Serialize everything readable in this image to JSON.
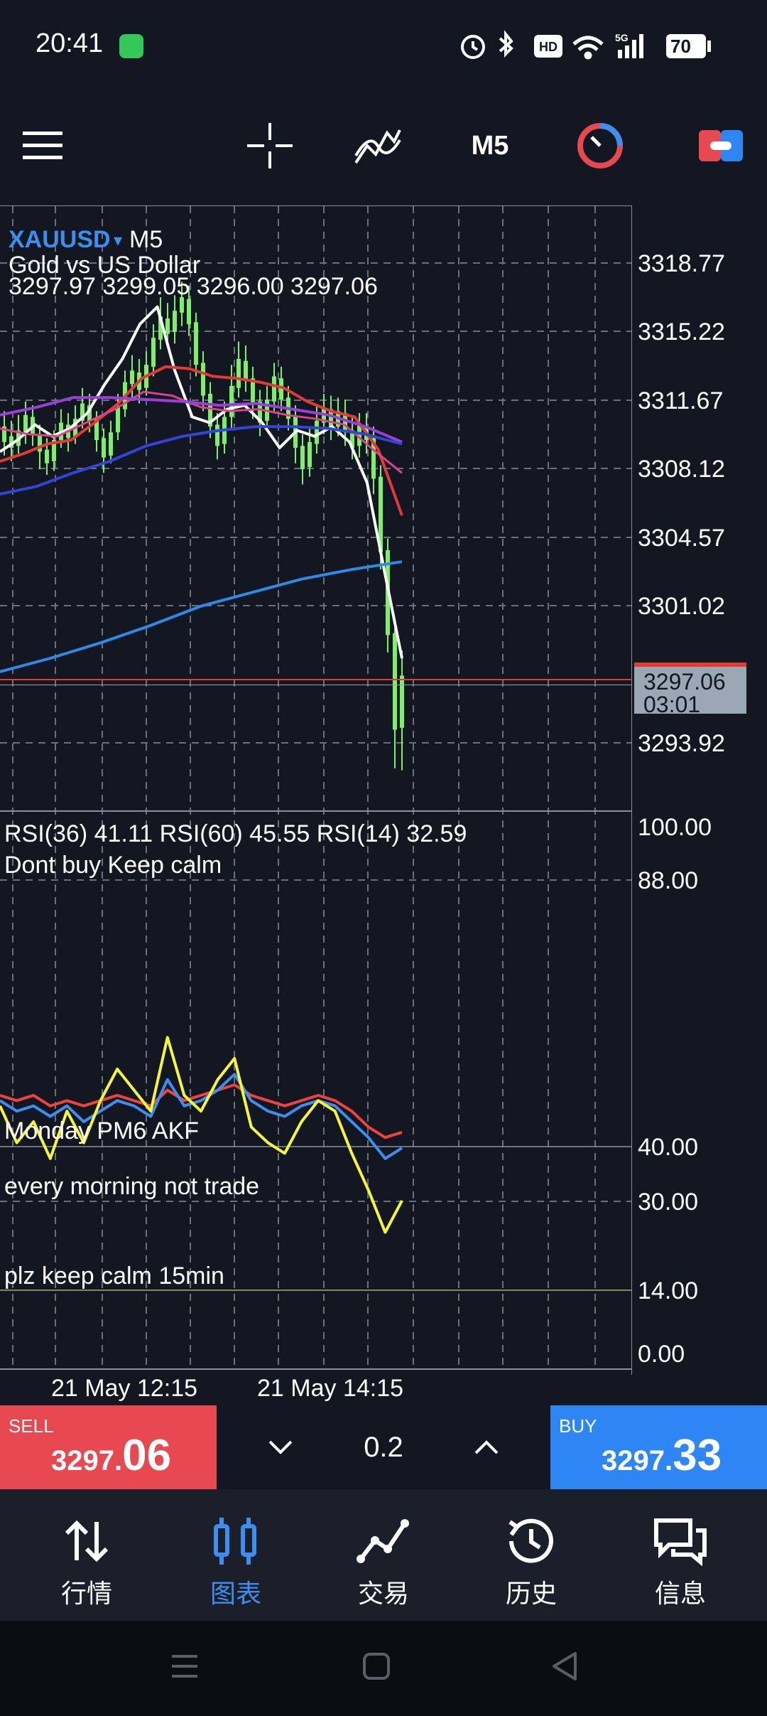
{
  "status": {
    "time": "20:41",
    "battery": "70",
    "hd": "HD",
    "network": "5G"
  },
  "toolbar": {
    "timeframe": "M5",
    "menu_icon": "menu-icon",
    "crosshair_icon": "crosshair-icon",
    "indicators_icon": "indicators-icon",
    "timer_icon": "timer-icon",
    "trade_toggle_icon": "trade-toggle-icon"
  },
  "chart": {
    "symbol": "XAUUSD",
    "symbol_arrow": "▾",
    "timeframe": "M5",
    "description": "Gold vs US Dollar",
    "ohlc": "3297.97 3299.05 3296.00 3297.06",
    "price_levels": [
      "3318.77",
      "3315.22",
      "3311.67",
      "3308.12",
      "3304.57",
      "3301.02",
      "3293.92"
    ],
    "current_price": "3297.06",
    "countdown": "03:01",
    "rsi_header": "RSI(36) 41.11 RSI(60) 45.55 RSI(14) 32.59",
    "note1": "Dont buy Keep calm",
    "rsi_levels": [
      "100.00",
      "88.00",
      "40.00",
      "30.00",
      "14.00",
      "0.00"
    ],
    "note_monday": "Monday PM6 AKF",
    "note_morning": "every morning not trade",
    "note_calm": "plz keep calm 15min",
    "time_labels": [
      "21 May 12:15",
      "21 May 14:15"
    ],
    "colors": {
      "bull": "#7cf06a",
      "ma_white": "#ffffff",
      "ma_red": "#e53935",
      "ma_pink": "#e0408a",
      "ma_purple": "#9b3fd8",
      "ma_blue": "#3344d8",
      "ma_lightblue": "#2e8ae6",
      "rsi_yellow": "#f5f53a",
      "rsi_blue": "#3d8ef0",
      "rsi_red": "#f0433a"
    }
  },
  "chart_data": {
    "type": "line",
    "ylim": [
      3291.5,
      3320.5
    ],
    "series": [
      {
        "values": [
          3309,
          3309.6,
          3310.4,
          3309.8,
          3310.2,
          3311,
          3312.5,
          3313.8,
          3315.6,
          3316.5,
          3313.2,
          3310.8,
          3310.5,
          3311.2,
          3311.4,
          3310.5,
          3309.2,
          3310.1,
          3309.8,
          3310.3,
          3309.5,
          3307.4,
          3302.8,
          3298.3
        ]
      },
      {
        "values": [
          3308.5,
          3308.9,
          3309.4,
          3309.6,
          3310.5,
          3311.5,
          3312.8,
          3313.4,
          3313.3,
          3312.9,
          3312.8,
          3312.6,
          3312.3,
          3311.6,
          3311.1,
          3310.8,
          3309.1,
          3305.7
        ]
      },
      {
        "values": [
          3310.2,
          3309.9,
          3309.8,
          3310.5,
          3311.2,
          3312.1,
          3311.9,
          3311.3,
          3311.1,
          3311.2,
          3310.9,
          3310.7,
          3310.4,
          3309.1,
          3307.9
        ]
      },
      {
        "values": [
          3310.9,
          3311.3,
          3311.8,
          3311.8,
          3311.7,
          3311.6,
          3311.4,
          3311.5,
          3311.2,
          3310.9,
          3310.3,
          3309.5
        ]
      },
      {
        "values": [
          3306.8,
          3307.2,
          3307.9,
          3308.5,
          3309.3,
          3309.8,
          3310.1,
          3310.3,
          3310.3,
          3310.2,
          3309.9,
          3309.4
        ]
      },
      {
        "values": [
          3297.6,
          3298.3,
          3299.1,
          3300.0,
          3301.0,
          3301.7,
          3302.4,
          3302.9,
          3303.3
        ]
      },
      {
        "values": [
          3297.3
        ]
      }
    ]
  },
  "trade": {
    "sell_label": "SELL",
    "sell_small": "3297.",
    "sell_big": "06",
    "lot": "0.2",
    "buy_label": "BUY",
    "buy_small": "3297.",
    "buy_big": "33"
  },
  "nav": {
    "items": [
      {
        "label": "行情",
        "icon": "quotes-icon"
      },
      {
        "label": "图表",
        "icon": "chart-icon"
      },
      {
        "label": "交易",
        "icon": "trade-icon"
      },
      {
        "label": "历史",
        "icon": "history-icon"
      },
      {
        "label": "信息",
        "icon": "messages-icon"
      }
    ]
  }
}
